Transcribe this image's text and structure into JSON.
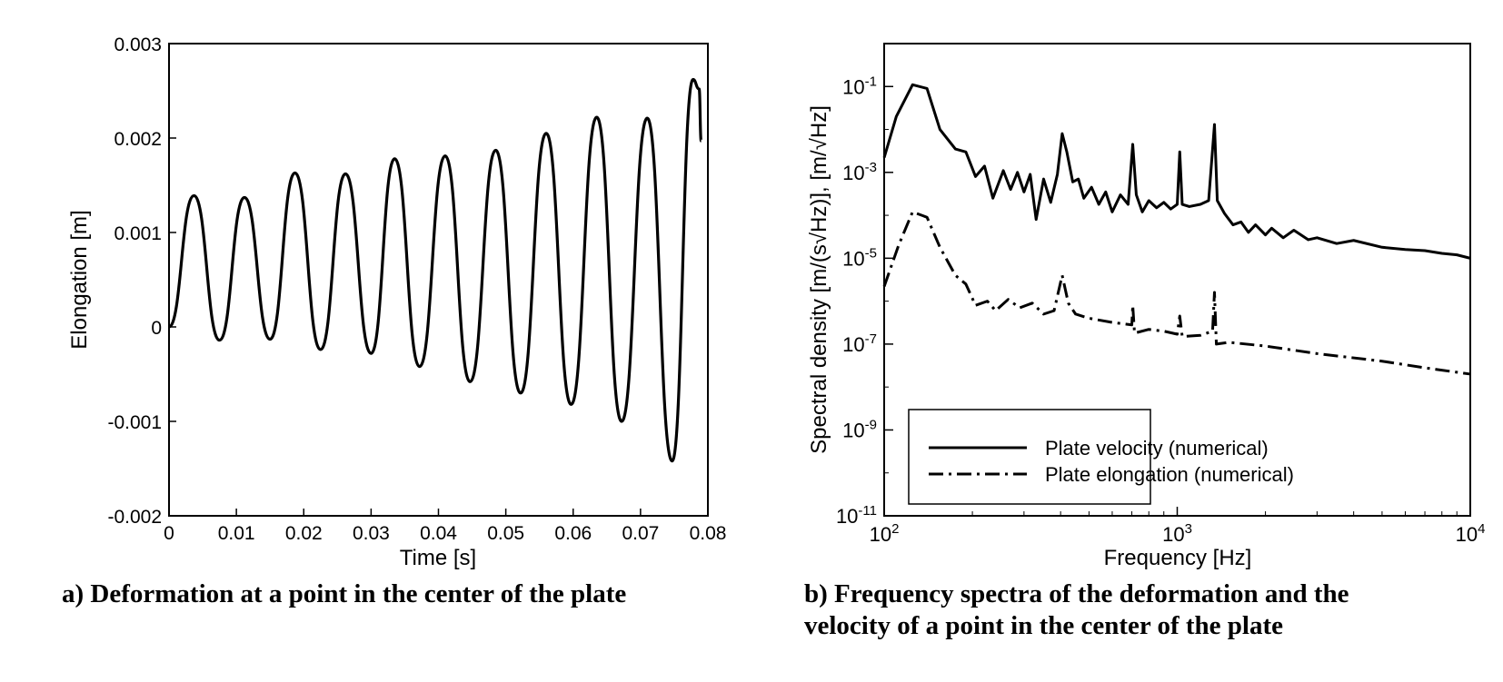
{
  "chart_data": [
    {
      "type": "line",
      "title": "",
      "caption": "a) Deformation at a point in the center of the plate",
      "xlabel": "Time [s]",
      "ylabel": "Elongation [m]",
      "xlim": [
        0,
        0.08
      ],
      "ylim": [
        -0.002,
        0.003
      ],
      "x_ticks": [
        0,
        0.01,
        0.02,
        0.03,
        0.04,
        0.05,
        0.06,
        0.07,
        0.08
      ],
      "x_tick_labels": [
        "0",
        "0.01",
        "0.02",
        "0.03",
        "0.04",
        "0.05",
        "0.06",
        "0.07",
        "0.08"
      ],
      "y_ticks": [
        -0.002,
        -0.001,
        0,
        0.001,
        0.002,
        0.003
      ],
      "y_tick_labels": [
        "-0.002",
        "-0.001",
        "0",
        "0.001",
        "0.002",
        "0.003"
      ],
      "grid": false,
      "series": [
        {
          "name": "",
          "color": "#000000",
          "style": "solid",
          "points": [
            [
              0,
              0
            ],
            [
              0.0037,
              0.00139
            ],
            [
              0.0075,
              -0.00014
            ],
            [
              0.0112,
              0.00137
            ],
            [
              0.015,
              -0.00013
            ],
            [
              0.0187,
              0.00163
            ],
            [
              0.0225,
              -0.00024
            ],
            [
              0.0262,
              0.00162
            ],
            [
              0.03,
              -0.00028
            ],
            [
              0.0335,
              0.00178
            ],
            [
              0.0372,
              -0.00042
            ],
            [
              0.041,
              0.00181
            ],
            [
              0.0447,
              -0.00058
            ],
            [
              0.0485,
              0.00187
            ],
            [
              0.0522,
              -0.0007
            ],
            [
              0.056,
              0.00205
            ],
            [
              0.0597,
              -0.00082
            ],
            [
              0.0635,
              0.00222
            ],
            [
              0.0672,
              -0.001
            ],
            [
              0.071,
              0.00221
            ],
            [
              0.0747,
              -0.00142
            ],
            [
              0.0778,
              0.00262
            ],
            [
              0.0787,
              0.00252
            ],
            [
              0.079,
              0.00197
            ]
          ]
        }
      ]
    },
    {
      "type": "line",
      "title": "",
      "caption_line1": "b) Frequency spectra of the deformation and the",
      "caption_line2": "velocity of a point in the center of the plate",
      "xlabel": "Frequency [Hz]",
      "ylabel": "Spectral density [m/(s√Hz)], [m/√Hz]",
      "x_scale": "log",
      "y_scale": "log",
      "xlim": [
        100,
        10000
      ],
      "ylim": [
        1e-11,
        1
      ],
      "x_ticks": [
        100,
        1000,
        10000
      ],
      "x_tick_labels": [
        {
          "base": "10",
          "exp": "2"
        },
        {
          "base": "10",
          "exp": "3"
        },
        {
          "base": "10",
          "exp": "4"
        }
      ],
      "y_ticks": [
        1e-11,
        1e-09,
        1e-07,
        1e-05,
        0.001,
        0.1
      ],
      "y_tick_labels": [
        {
          "base": "10",
          "exp": "-11"
        },
        {
          "base": "10",
          "exp": "-9"
        },
        {
          "base": "10",
          "exp": "-7"
        },
        {
          "base": "10",
          "exp": "-5"
        },
        {
          "base": "10",
          "exp": "-3"
        },
        {
          "base": "10",
          "exp": "-1"
        }
      ],
      "grid": false,
      "legend_position": "bottom-left",
      "series": [
        {
          "name": "Plate velocity (numerical)",
          "color": "#000000",
          "style": "solid",
          "points": [
            [
              100,
              0.0022
            ],
            [
              110,
              0.02
            ],
            [
              125,
              0.11
            ],
            [
              140,
              0.09
            ],
            [
              155,
              0.01
            ],
            [
              175,
              0.0035
            ],
            [
              190,
              0.003
            ],
            [
              205,
              0.0008
            ],
            [
              220,
              0.0014
            ],
            [
              235,
              0.00025
            ],
            [
              255,
              0.0011
            ],
            [
              270,
              0.0004
            ],
            [
              285,
              0.001
            ],
            [
              300,
              0.00035
            ],
            [
              315,
              0.0009
            ],
            [
              330,
              8e-05
            ],
            [
              350,
              0.0007
            ],
            [
              370,
              0.0002
            ],
            [
              390,
              0.0009
            ],
            [
              405,
              0.008
            ],
            [
              420,
              0.003
            ],
            [
              440,
              0.0006
            ],
            [
              460,
              0.0007
            ],
            [
              480,
              0.00025
            ],
            [
              510,
              0.00045
            ],
            [
              540,
              0.00018
            ],
            [
              570,
              0.00035
            ],
            [
              600,
              0.00012
            ],
            [
              640,
              0.0003
            ],
            [
              680,
              0.00018
            ],
            [
              705,
              0.0045
            ],
            [
              725,
              0.0003
            ],
            [
              760,
              0.00012
            ],
            [
              800,
              0.00022
            ],
            [
              850,
              0.00015
            ],
            [
              900,
              0.0002
            ],
            [
              950,
              0.00014
            ],
            [
              1000,
              0.00018
            ],
            [
              1020,
              0.003
            ],
            [
              1040,
              0.00018
            ],
            [
              1100,
              0.00016
            ],
            [
              1200,
              0.00018
            ],
            [
              1280,
              0.00022
            ],
            [
              1340,
              0.013
            ],
            [
              1370,
              0.00022
            ],
            [
              1450,
              0.00011
            ],
            [
              1550,
              6e-05
            ],
            [
              1650,
              7e-05
            ],
            [
              1750,
              4e-05
            ],
            [
              1850,
              6e-05
            ],
            [
              2000,
              3.5e-05
            ],
            [
              2100,
              5e-05
            ],
            [
              2300,
              3e-05
            ],
            [
              2500,
              4.5e-05
            ],
            [
              2800,
              2.7e-05
            ],
            [
              3000,
              3e-05
            ],
            [
              3500,
              2.2e-05
            ],
            [
              4000,
              2.6e-05
            ],
            [
              5000,
              1.8e-05
            ],
            [
              6000,
              1.6e-05
            ],
            [
              7000,
              1.5e-05
            ],
            [
              8000,
              1.3e-05
            ],
            [
              9000,
              1.2e-05
            ],
            [
              10000,
              1e-05
            ]
          ]
        },
        {
          "name": "Plate elongation (numerical)",
          "color": "#000000",
          "style": "dashdot",
          "points": [
            [
              100,
              2.2e-06
            ],
            [
              112,
              2e-05
            ],
            [
              125,
              0.00012
            ],
            [
              140,
              9e-05
            ],
            [
              155,
              1.8e-05
            ],
            [
              175,
              4e-06
            ],
            [
              190,
              2.5e-06
            ],
            [
              205,
              8e-07
            ],
            [
              225,
              1e-06
            ],
            [
              240,
              6e-07
            ],
            [
              265,
              1.1e-06
            ],
            [
              290,
              7e-07
            ],
            [
              320,
              9e-07
            ],
            [
              350,
              5e-07
            ],
            [
              380,
              6e-07
            ],
            [
              405,
              4e-06
            ],
            [
              425,
              9e-07
            ],
            [
              450,
              5e-07
            ],
            [
              500,
              4e-07
            ],
            [
              600,
              3.2e-07
            ],
            [
              700,
              2.8e-07
            ],
            [
              705,
              8e-07
            ],
            [
              715,
              1.8e-07
            ],
            [
              800,
              2.2e-07
            ],
            [
              900,
              2e-07
            ],
            [
              1000,
              1.7e-07
            ],
            [
              1020,
              4.5e-07
            ],
            [
              1040,
              1.5e-07
            ],
            [
              1200,
              1.6e-07
            ],
            [
              1320,
              2e-07
            ],
            [
              1340,
              1.6e-06
            ],
            [
              1360,
              1e-07
            ],
            [
              1500,
              1.1e-07
            ],
            [
              2000,
              9e-08
            ],
            [
              3000,
              6e-08
            ],
            [
              5000,
              4e-08
            ],
            [
              7000,
              2.8e-08
            ],
            [
              10000,
              2e-08
            ]
          ]
        }
      ]
    }
  ]
}
